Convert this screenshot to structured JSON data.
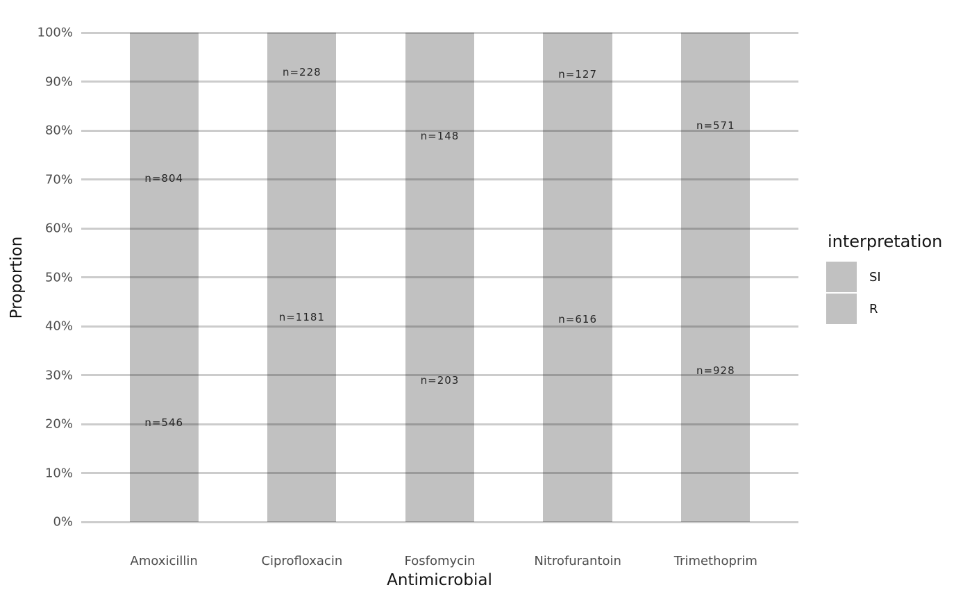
{
  "chart_data": {
    "type": "bar",
    "subtype": "stacked_percent",
    "title": "",
    "xlabel": "Antimicrobial",
    "ylabel": "Proportion",
    "categories": [
      "Amoxicillin",
      "Ciprofloxacin",
      "Fosfomycin",
      "Nitrofurantoin",
      "Trimethoprim"
    ],
    "series": [
      {
        "name": "SI",
        "stack_position": "top",
        "counts": [
          804,
          228,
          148,
          127,
          571
        ],
        "labels": [
          "n=804",
          "n=228",
          "n=148",
          "n=127",
          "n=571"
        ]
      },
      {
        "name": "R",
        "stack_position": "bottom",
        "counts": [
          546,
          1181,
          203,
          616,
          928
        ],
        "labels": [
          "n=546",
          "n=1181",
          "n=203",
          "n=616",
          "n=928"
        ]
      }
    ],
    "proportions_bottom_R": [
      0.404,
      0.838,
      0.578,
      0.829,
      0.619
    ],
    "y_ticks": [
      "0%",
      "10%",
      "20%",
      "30%",
      "40%",
      "50%",
      "60%",
      "70%",
      "80%",
      "90%",
      "100%"
    ],
    "ylim": [
      0,
      1
    ],
    "grid": true,
    "legend": {
      "title": "interpretation",
      "entries": [
        "SI",
        "R"
      ],
      "position": "right"
    }
  },
  "colors": {
    "background": "#ffffff",
    "bar_fill": "#c1c1c1",
    "gridline_on_white": "#cdcdcd",
    "gridline_on_bar": "#9e9e9e",
    "tick_text": "#4d4d4d",
    "title_text": "#141414",
    "bar_label_text": "#262626"
  }
}
